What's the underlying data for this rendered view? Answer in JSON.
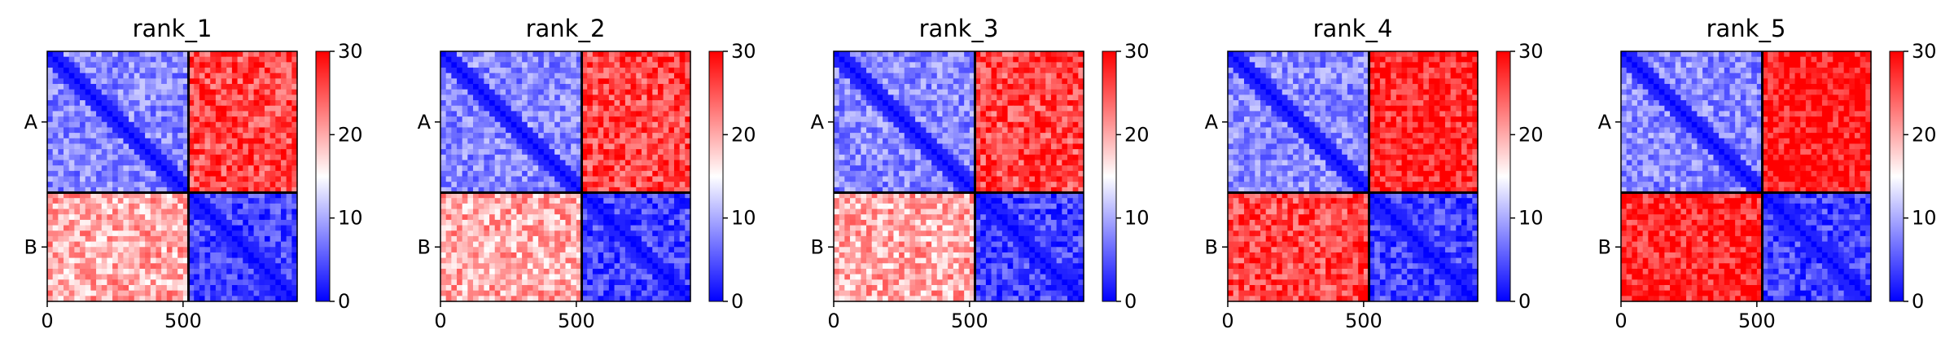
{
  "figure": {
    "panels": [
      "rank_1",
      "rank_2",
      "rank_3",
      "rank_4",
      "rank_5"
    ]
  },
  "chart_data": [
    {
      "type": "heatmap",
      "title": "rank_1",
      "xticks": [
        0,
        500
      ],
      "yticks": [
        "A",
        "B"
      ],
      "chain_lengths": {
        "A": 520,
        "B": 400
      },
      "colormap": "bwr",
      "colorbar": {
        "ticks": [
          0,
          10,
          20,
          30
        ],
        "range": [
          0,
          30
        ]
      },
      "block_means": {
        "AA": 8,
        "AB": 26,
        "BA": 20,
        "BB": 4
      }
    },
    {
      "type": "heatmap",
      "title": "rank_2",
      "xticks": [
        0,
        500
      ],
      "yticks": [
        "A",
        "B"
      ],
      "chain_lengths": {
        "A": 520,
        "B": 400
      },
      "colormap": "bwr",
      "colorbar": {
        "ticks": [
          0,
          10,
          20,
          30
        ],
        "range": [
          0,
          30
        ]
      },
      "block_means": {
        "AA": 8,
        "AB": 26,
        "BA": 20,
        "BB": 4
      }
    },
    {
      "type": "heatmap",
      "title": "rank_3",
      "xticks": [
        0,
        500
      ],
      "yticks": [
        "A",
        "B"
      ],
      "chain_lengths": {
        "A": 520,
        "B": 400
      },
      "colormap": "bwr",
      "colorbar": {
        "ticks": [
          0,
          10,
          20,
          30
        ],
        "range": [
          0,
          30
        ]
      },
      "block_means": {
        "AA": 8,
        "AB": 26,
        "BA": 20,
        "BB": 4
      }
    },
    {
      "type": "heatmap",
      "title": "rank_4",
      "xticks": [
        0,
        500
      ],
      "yticks": [
        "A",
        "B"
      ],
      "chain_lengths": {
        "A": 520,
        "B": 400
      },
      "colormap": "bwr",
      "colorbar": {
        "ticks": [
          0,
          10,
          20,
          30
        ],
        "range": [
          0,
          30
        ]
      },
      "block_means": {
        "AA": 8,
        "AB": 28,
        "BA": 26,
        "BB": 4
      }
    },
    {
      "type": "heatmap",
      "title": "rank_5",
      "xticks": [
        0,
        500
      ],
      "yticks": [
        "A",
        "B"
      ],
      "chain_lengths": {
        "A": 520,
        "B": 400
      },
      "colormap": "bwr",
      "colorbar": {
        "ticks": [
          0,
          10,
          20,
          30
        ],
        "range": [
          0,
          30
        ]
      },
      "block_means": {
        "AA": 8,
        "AB": 29,
        "BA": 28,
        "BB": 4
      }
    }
  ]
}
